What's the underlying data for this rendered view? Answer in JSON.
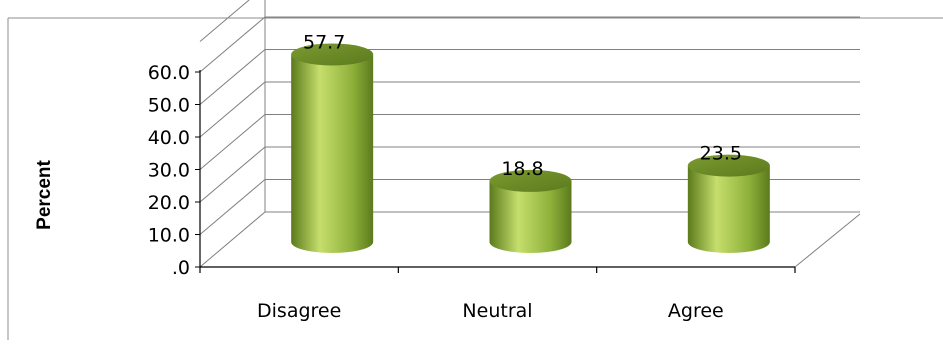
{
  "chart_data": {
    "type": "bar",
    "style": "3d-cylinder",
    "title": "",
    "categories": [
      "Disagree",
      "Neutral",
      "Agree"
    ],
    "values": [
      57.7,
      18.8,
      23.5
    ],
    "value_labels": [
      "57.7",
      "18.8",
      "23.5"
    ],
    "ylabel": "Percent",
    "xlabel": "",
    "ylim": [
      0,
      60
    ],
    "yticks": [
      ".0",
      "10.0",
      "20.0",
      "30.0",
      "40.0",
      "50.0",
      "60.0"
    ],
    "grid": true,
    "legend": "none",
    "colors": {
      "bar_light": "#c6de6c",
      "bar_mid": "#8db03a",
      "bar_dark": "#5b7a1c",
      "bar_top": "#7c9b32",
      "grid": "#808080",
      "axis": "#000000",
      "frame": "#808080"
    }
  }
}
